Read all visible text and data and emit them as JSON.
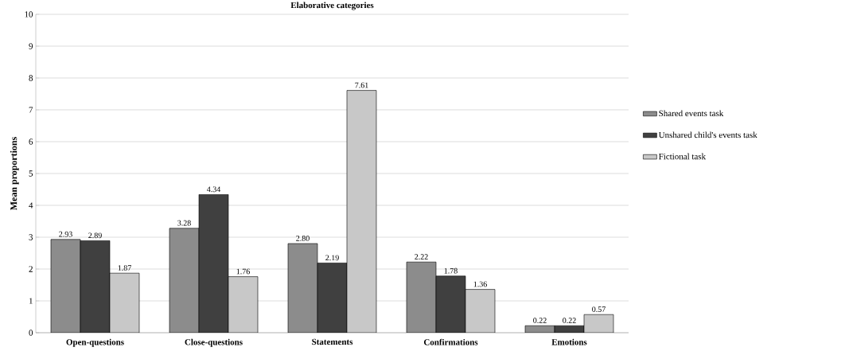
{
  "chart_data": {
    "type": "bar",
    "title": "Elaborative categories",
    "ylabel": "Mean proportions",
    "categories": [
      "Open-questions",
      "Close-questions",
      "Statements",
      "Confirmations",
      "Emotions"
    ],
    "series": [
      {
        "name": "Shared events task",
        "color": "#8c8c8c",
        "values": [
          2.93,
          3.28,
          2.8,
          2.22,
          0.22
        ],
        "value_labels": [
          "2.93",
          "3.28",
          "2.80",
          "2.22",
          "0.22"
        ]
      },
      {
        "name": "Unshared child's events task",
        "color": "#404040",
        "values": [
          2.89,
          4.34,
          2.19,
          1.78,
          0.22
        ],
        "value_labels": [
          "2.89",
          "4.34",
          "2.19",
          "1.78",
          "0.22"
        ]
      },
      {
        "name": "Fictional task",
        "color": "#c8c8c8",
        "values": [
          1.87,
          1.76,
          7.61,
          1.36,
          0.57
        ],
        "value_labels": [
          "1.87",
          "1.76",
          "7.61",
          "1.36",
          "0.57"
        ]
      }
    ],
    "ylim": [
      0,
      10
    ],
    "yticks": [
      0,
      1,
      2,
      3,
      4,
      5,
      6,
      7,
      8,
      9,
      10
    ],
    "grid": "y",
    "legend": "right"
  }
}
